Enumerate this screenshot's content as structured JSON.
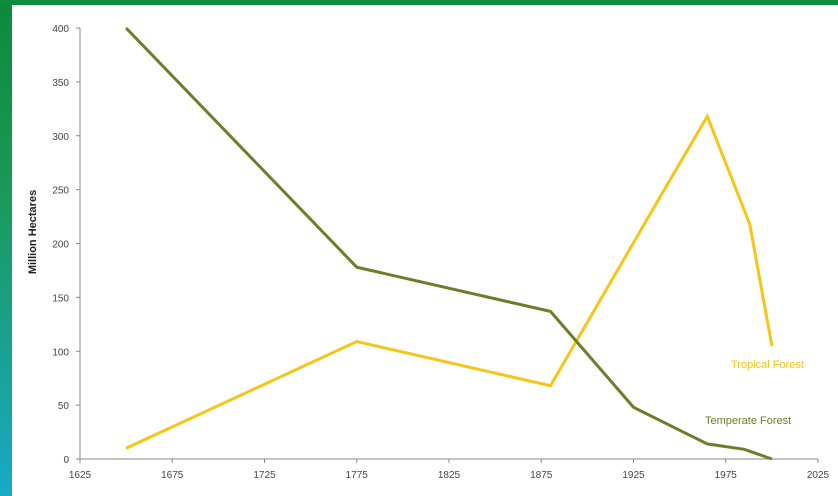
{
  "chart_data": {
    "type": "line",
    "title": "",
    "xlabel": "",
    "ylabel": "Million Hectares",
    "xlim": [
      1625,
      2025
    ],
    "ylim": [
      0,
      400
    ],
    "x_ticks": [
      1625,
      1675,
      1725,
      1775,
      1825,
      1875,
      1925,
      1975,
      2025
    ],
    "y_ticks": [
      0,
      50,
      100,
      150,
      200,
      250,
      300,
      350,
      400
    ],
    "grid": false,
    "series": [
      {
        "name": "Tropical Forest",
        "color": "#f5c518",
        "points": [
          {
            "x": 1650,
            "y": 10
          },
          {
            "x": 1775,
            "y": 109
          },
          {
            "x": 1880,
            "y": 68
          },
          {
            "x": 1940,
            "y": 245
          },
          {
            "x": 1965,
            "y": 318
          },
          {
            "x": 1988,
            "y": 218
          },
          {
            "x": 2000,
            "y": 105
          }
        ]
      },
      {
        "name": "Temperate Forest",
        "color": "#6b7f2a",
        "points": [
          {
            "x": 1650,
            "y": 400
          },
          {
            "x": 1775,
            "y": 178
          },
          {
            "x": 1880,
            "y": 137
          },
          {
            "x": 1925,
            "y": 48
          },
          {
            "x": 1965,
            "y": 14
          },
          {
            "x": 1985,
            "y": 9
          },
          {
            "x": 2000,
            "y": 0
          }
        ]
      }
    ]
  }
}
